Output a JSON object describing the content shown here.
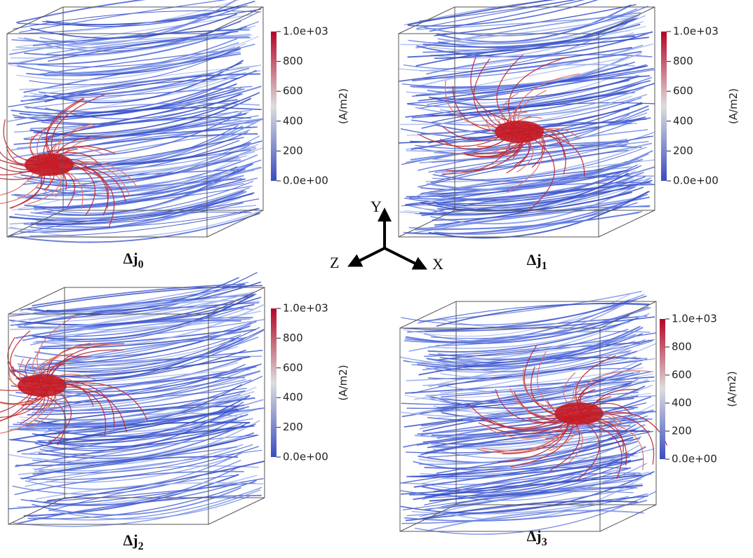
{
  "panels": [
    {
      "label": {
        "symbol": "Δj",
        "subscript": "0"
      },
      "colorbar": {
        "title": "(A/m2)",
        "range": [
          0,
          1000
        ],
        "ticks": [
          {
            "value": 1000,
            "label": "1.0e+03"
          },
          800,
          600,
          400,
          200,
          {
            "value": 0,
            "label": "0.0e+00"
          }
        ]
      }
    },
    {
      "label": {
        "symbol": "Δj",
        "subscript": "1"
      },
      "colorbar": {
        "title": "(A/m2)",
        "range": [
          0,
          1000
        ],
        "ticks": [
          {
            "value": 1000,
            "label": "1.0e+03"
          },
          800,
          600,
          400,
          200,
          {
            "value": 0,
            "label": "0.0e+00"
          }
        ]
      }
    },
    {
      "label": {
        "symbol": "Δj",
        "subscript": "2"
      },
      "colorbar": {
        "title": "(A/m2)",
        "range": [
          0,
          1000
        ],
        "ticks": [
          {
            "value": 1000,
            "label": "1.0e+03"
          },
          800,
          600,
          400,
          200,
          {
            "value": 0,
            "label": "0.0e+00"
          }
        ]
      }
    },
    {
      "label": {
        "symbol": "Δj",
        "subscript": "3"
      },
      "colorbar": {
        "title": "(A/m2)",
        "range": [
          0,
          1000
        ],
        "ticks": [
          {
            "value": 1000,
            "label": "1.0e+03"
          },
          800,
          600,
          400,
          200,
          {
            "value": 0,
            "label": "0.0e+00"
          }
        ]
      }
    }
  ],
  "axes": {
    "x": "X",
    "y": "Y",
    "z": "Z"
  }
}
